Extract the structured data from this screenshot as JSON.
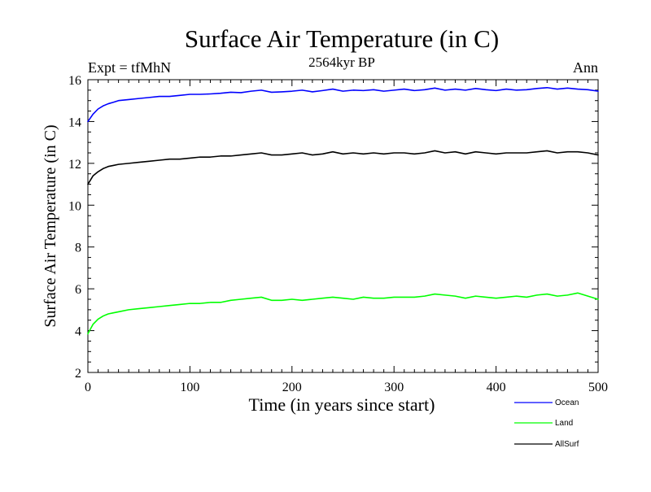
{
  "chart_data": {
    "type": "line",
    "title": "Surface Air Temperature (in C)",
    "subtitle": "2564kyr BP",
    "left_label": "Expt = tfMhN",
    "right_label": "Ann",
    "xlabel": "Time (in years since start)",
    "ylabel": "Surface Air Temperature (in C)",
    "xlim": [
      0,
      500
    ],
    "ylim": [
      2,
      16
    ],
    "x_ticks": [
      0,
      100,
      200,
      300,
      400,
      500
    ],
    "y_ticks": [
      2,
      4,
      6,
      8,
      10,
      12,
      14,
      16
    ],
    "x_minor_step": 10,
    "y_minor_step": 0.5,
    "grid": false,
    "legend_position": "bottom-right outside plot",
    "x": [
      0,
      5,
      10,
      15,
      20,
      25,
      30,
      40,
      50,
      60,
      70,
      80,
      90,
      100,
      110,
      120,
      130,
      140,
      150,
      160,
      170,
      180,
      190,
      200,
      210,
      220,
      230,
      240,
      250,
      260,
      270,
      280,
      290,
      300,
      310,
      320,
      330,
      340,
      350,
      360,
      370,
      380,
      390,
      400,
      410,
      420,
      430,
      440,
      450,
      460,
      470,
      480,
      490,
      500
    ],
    "series": [
      {
        "name": "Ocean",
        "color": "#0000ff",
        "values": [
          14.0,
          14.35,
          14.6,
          14.75,
          14.85,
          14.92,
          15.0,
          15.05,
          15.1,
          15.15,
          15.2,
          15.2,
          15.25,
          15.3,
          15.3,
          15.32,
          15.35,
          15.4,
          15.38,
          15.45,
          15.5,
          15.4,
          15.42,
          15.45,
          15.5,
          15.42,
          15.48,
          15.55,
          15.45,
          15.5,
          15.48,
          15.52,
          15.45,
          15.5,
          15.55,
          15.48,
          15.52,
          15.6,
          15.5,
          15.55,
          15.5,
          15.58,
          15.52,
          15.48,
          15.55,
          15.5,
          15.52,
          15.58,
          15.62,
          15.55,
          15.6,
          15.55,
          15.52,
          15.45
        ]
      },
      {
        "name": "Land",
        "color": "#00ff00",
        "values": [
          3.85,
          4.3,
          4.55,
          4.7,
          4.8,
          4.85,
          4.9,
          5.0,
          5.05,
          5.1,
          5.15,
          5.2,
          5.25,
          5.3,
          5.3,
          5.35,
          5.35,
          5.45,
          5.5,
          5.55,
          5.6,
          5.45,
          5.45,
          5.5,
          5.45,
          5.5,
          5.55,
          5.6,
          5.55,
          5.5,
          5.6,
          5.55,
          5.55,
          5.6,
          5.6,
          5.6,
          5.65,
          5.75,
          5.7,
          5.65,
          5.55,
          5.65,
          5.6,
          5.55,
          5.6,
          5.65,
          5.6,
          5.7,
          5.75,
          5.65,
          5.7,
          5.8,
          5.65,
          5.5
        ]
      },
      {
        "name": "AllSurf",
        "color": "#000000",
        "values": [
          11.0,
          11.4,
          11.6,
          11.75,
          11.85,
          11.9,
          11.95,
          12.0,
          12.05,
          12.1,
          12.15,
          12.2,
          12.2,
          12.25,
          12.3,
          12.3,
          12.35,
          12.35,
          12.4,
          12.45,
          12.5,
          12.4,
          12.4,
          12.45,
          12.5,
          12.4,
          12.45,
          12.55,
          12.45,
          12.5,
          12.45,
          12.5,
          12.45,
          12.5,
          12.5,
          12.45,
          12.5,
          12.6,
          12.5,
          12.55,
          12.45,
          12.55,
          12.5,
          12.45,
          12.5,
          12.5,
          12.5,
          12.55,
          12.6,
          12.5,
          12.55,
          12.55,
          12.5,
          12.4
        ]
      }
    ]
  }
}
